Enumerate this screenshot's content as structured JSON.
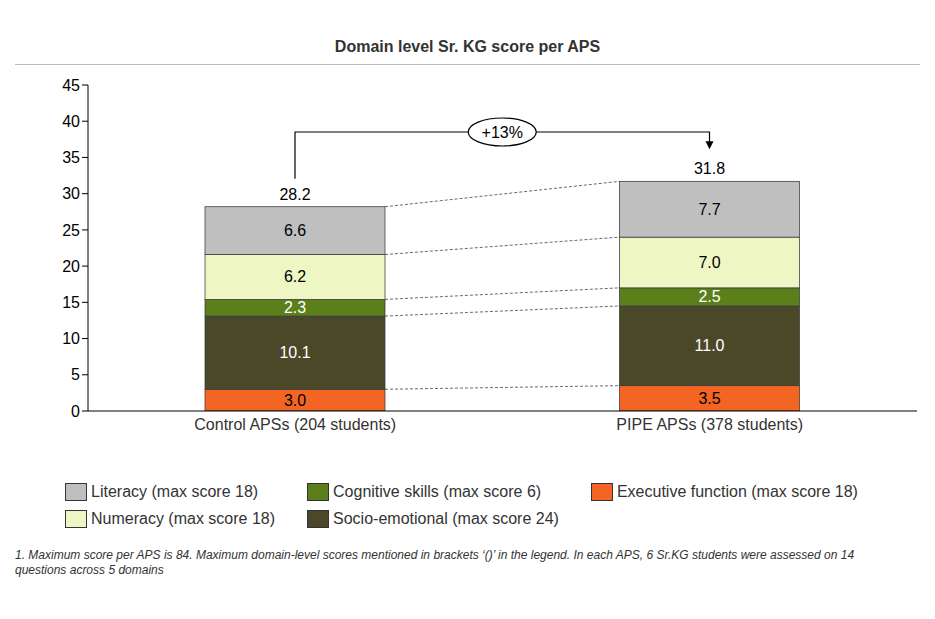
{
  "chart_data": {
    "type": "bar",
    "title": "Domain level Sr. KG score per APS",
    "categories": [
      "Control APSs (204 students)",
      "PIPE APSs (378 students)"
    ],
    "series": [
      {
        "name": "Executive function (max score 18)",
        "color": "#f26522",
        "values": [
          3.0,
          3.5
        ],
        "value_labels": [
          "3.0",
          "3.5"
        ]
      },
      {
        "name": "Socio-emotional (max score 24)",
        "color": "#4b4829",
        "values": [
          10.1,
          11.0
        ],
        "value_labels": [
          "10.1",
          "11.0"
        ]
      },
      {
        "name": "Cognitive skills (max score 6)",
        "color": "#5b7f1a",
        "values": [
          2.3,
          2.5
        ],
        "value_labels": [
          "2.3",
          "2.5"
        ]
      },
      {
        "name": "Numeracy (max score 18)",
        "color": "#eef7c4",
        "values": [
          6.2,
          7.0
        ],
        "value_labels": [
          "6.2",
          "7.0"
        ]
      },
      {
        "name": "Literacy (max score 18)",
        "color": "#bfbfbf",
        "values": [
          6.6,
          7.7
        ],
        "value_labels": [
          "6.6",
          "7.7"
        ]
      }
    ],
    "totals": [
      28.2,
      31.8
    ],
    "annotation": "+13%",
    "footnote": "1. Maximum score per APS is 84. Maximum domain-level scores mentioned in brackets ‘()’ in the legend. In each APS, 6 Sr.KG students were assessed on 14 questions across 5 domains",
    "ylim": [
      0,
      45
    ],
    "yticks": [
      0,
      5,
      10,
      15,
      20,
      25,
      30,
      35,
      40,
      45
    ],
    "grid": false,
    "stacked": true,
    "data_labels": true,
    "legend": "bottom"
  }
}
